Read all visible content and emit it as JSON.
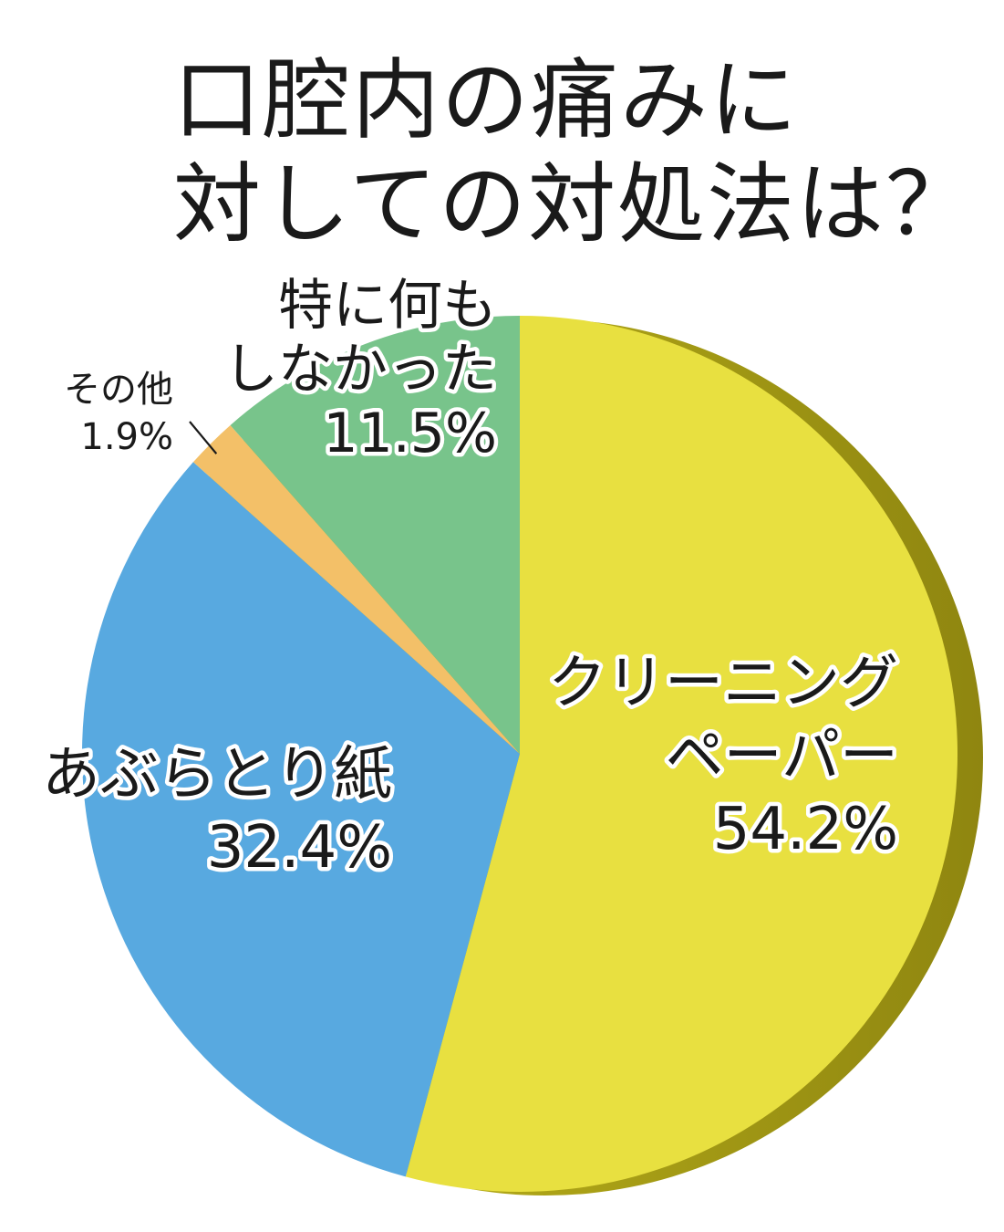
{
  "title_line1": "口腔内の痛みに",
  "title_line2": "対しての対処法は？",
  "chart_data": {
    "type": "pie",
    "title": "口腔内の痛みに対しての対処法は？",
    "slices": [
      {
        "label_lines": [
          "クリーニング",
          "ペーパー"
        ],
        "value": 54.2,
        "value_label": "54.2%",
        "color": "#e8e040"
      },
      {
        "label_lines": [
          "あぶらとり紙"
        ],
        "value": 32.4,
        "value_label": "32.4%",
        "color": "#58a9e0"
      },
      {
        "label_lines": [
          "その他"
        ],
        "value": 1.9,
        "value_label": "1.9%",
        "color": "#f3c068"
      },
      {
        "label_lines": [
          "特に何も",
          "しなかった"
        ],
        "value": 11.5,
        "value_label": "11.5%",
        "color": "#78c48b"
      }
    ],
    "start": "12 o'clock, clockwise",
    "legend": "none (labels on slices)"
  }
}
